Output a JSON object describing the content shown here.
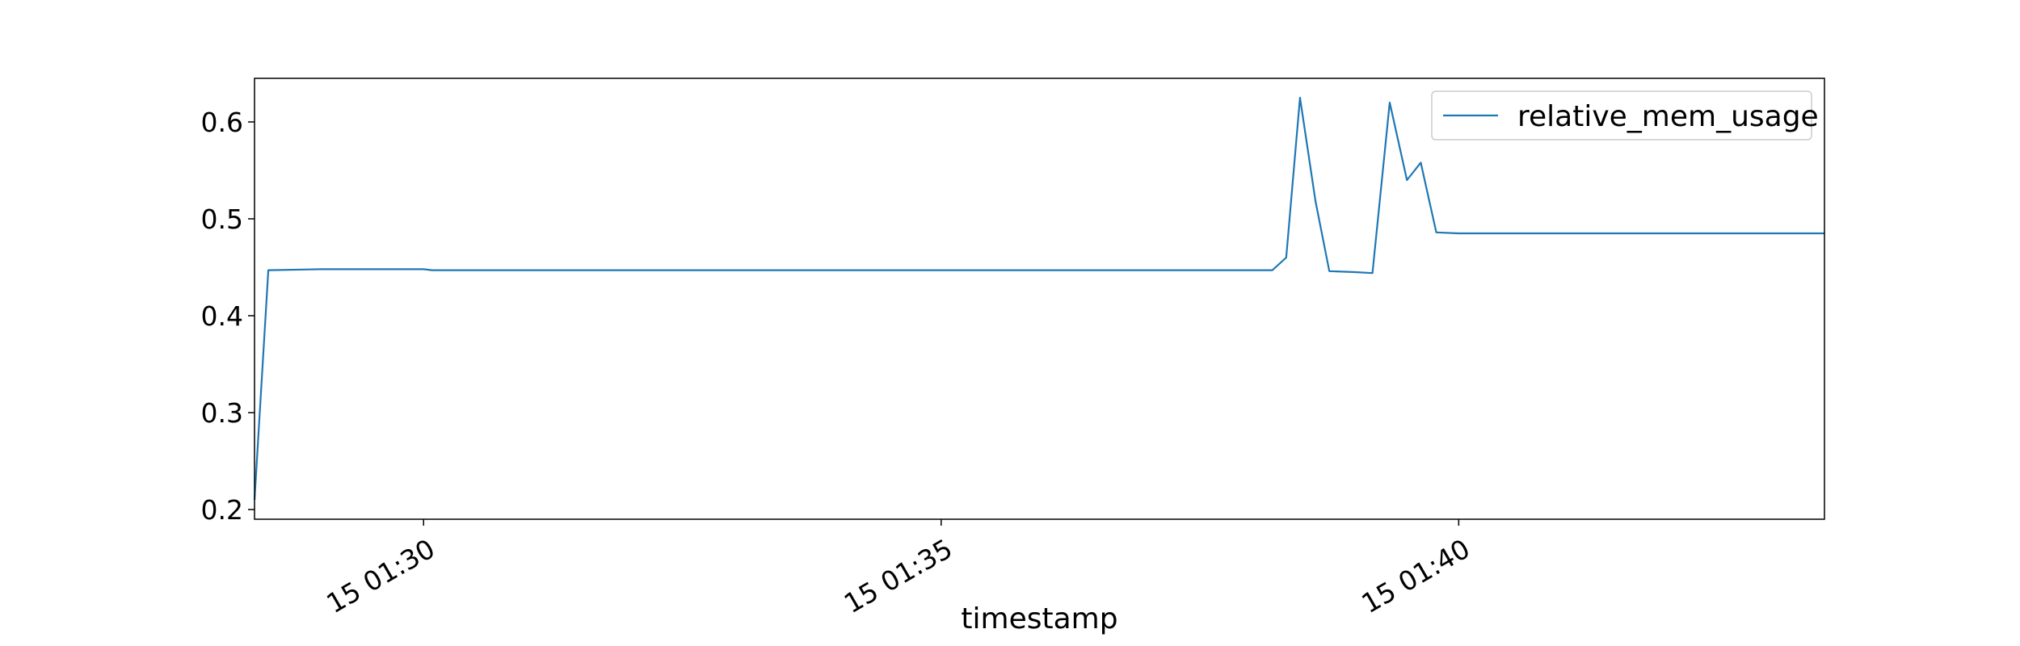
{
  "chart_data": {
    "type": "line",
    "title": "",
    "xlabel": "timestamp",
    "ylabel": "",
    "x_unit": "minutes",
    "xlim": [
      "01:28:22",
      "01:43:32"
    ],
    "ylim": [
      0.19,
      0.645
    ],
    "x_ticks": [
      {
        "value": "01:30",
        "label": "15 01:30"
      },
      {
        "value": "01:35",
        "label": "15 01:35"
      },
      {
        "value": "01:40",
        "label": "15 01:40"
      }
    ],
    "y_ticks": [
      0.2,
      0.3,
      0.4,
      0.5,
      0.6
    ],
    "grid": false,
    "legend": {
      "placement": "top-right"
    },
    "colors": {
      "series": "#1f77b4",
      "axes": "#000000",
      "legend_border": "#cccccc"
    },
    "series": [
      {
        "name": "relative_mem_usage",
        "points": [
          [
            "01:28:22",
            0.21
          ],
          [
            "01:28:30",
            0.447
          ],
          [
            "01:29:00",
            0.448
          ],
          [
            "01:29:30",
            0.448
          ],
          [
            "01:30:00",
            0.448
          ],
          [
            "01:30:05",
            0.447
          ],
          [
            "01:31:00",
            0.447
          ],
          [
            "01:32:00",
            0.447
          ],
          [
            "01:33:00",
            0.447
          ],
          [
            "01:34:00",
            0.447
          ],
          [
            "01:35:00",
            0.447
          ],
          [
            "01:36:00",
            0.447
          ],
          [
            "01:37:00",
            0.447
          ],
          [
            "01:38:00",
            0.447
          ],
          [
            "01:38:12",
            0.447
          ],
          [
            "01:38:20",
            0.46
          ],
          [
            "01:38:28",
            0.625
          ],
          [
            "01:38:37",
            0.518
          ],
          [
            "01:38:45",
            0.446
          ],
          [
            "01:39:00",
            0.445
          ],
          [
            "01:39:10",
            0.444
          ],
          [
            "01:39:20",
            0.62
          ],
          [
            "01:39:30",
            0.54
          ],
          [
            "01:39:38",
            0.558
          ],
          [
            "01:39:47",
            0.486
          ],
          [
            "01:40:00",
            0.485
          ],
          [
            "01:41:00",
            0.485
          ],
          [
            "01:42:00",
            0.485
          ],
          [
            "01:43:00",
            0.485
          ],
          [
            "01:43:32",
            0.485
          ]
        ]
      }
    ]
  }
}
